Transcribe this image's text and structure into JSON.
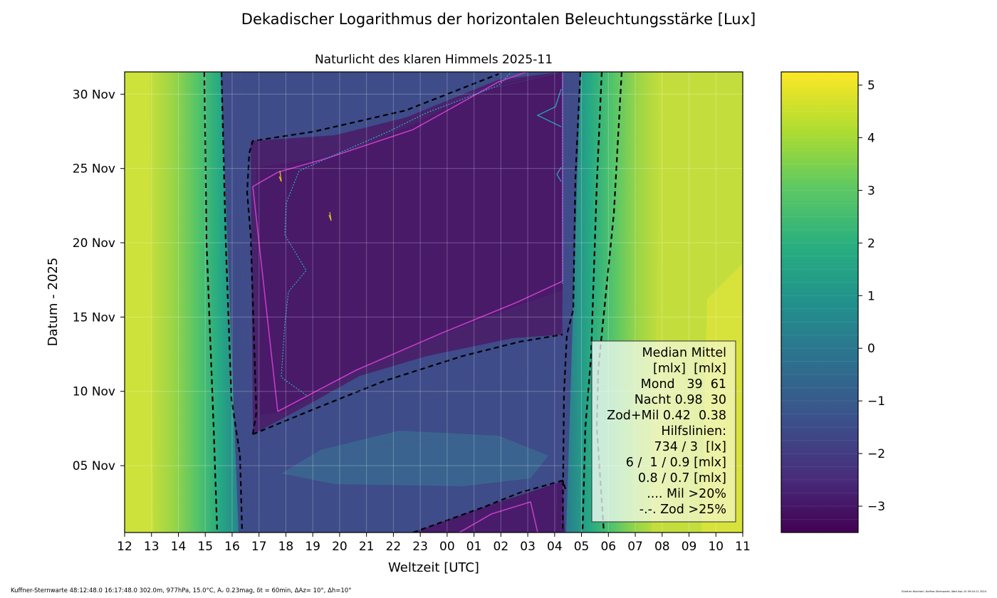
{
  "figure": {
    "suptitle": "Dekadischer Logarithmus der horizontalen Beleuchtungsstärke [Lux]",
    "title": "Naturlicht des klaren Himmels 2025-11",
    "footer_left": "Kuffner-Sternwarte 48:12:48.0 16:17:48.0 302.0m,  977hPa, 15.0°C, Aᵥ 0.23mag, δt = 60min, ΔAz= 10°, Δh=10°",
    "footer_right": "Günther Wuchterl, Kuffner-Sternwarte, Wed Sep 10 09:54:11 2024"
  },
  "chart_data": {
    "type": "heatmap",
    "title": "Naturlicht des klaren Himmels 2025-11",
    "xlabel": "Weltzeit [UTC]",
    "ylabel": "Datum - 2025",
    "x_ticks": [
      "12",
      "13",
      "14",
      "15",
      "16",
      "17",
      "18",
      "19",
      "20",
      "21",
      "22",
      "23",
      "00",
      "01",
      "02",
      "03",
      "04",
      "05",
      "06",
      "07",
      "08",
      "09",
      "10",
      "11"
    ],
    "y_ticks": [
      "05 Nov",
      "10 Nov",
      "15 Nov",
      "20 Nov",
      "25 Nov",
      "30 Nov"
    ],
    "y_tick_days": [
      5,
      10,
      15,
      20,
      25,
      30
    ],
    "xlim_hours_since_12utc": [
      0,
      23
    ],
    "ylim_day": [
      0.5,
      31.5
    ],
    "grid": true,
    "colorbar": {
      "ticks": [
        "5",
        "4",
        "3",
        "2",
        "1",
        "0",
        "−1",
        "−2",
        "−3"
      ],
      "tick_values": [
        5,
        4,
        3,
        2,
        1,
        0,
        -1,
        -2,
        -3
      ],
      "range": [
        -3.5,
        5.25
      ],
      "colormap": "viridis"
    },
    "sunset_utc_approx": {
      "day_1": "15:30",
      "day_30": "14:45"
    },
    "sunrise_utc_approx": {
      "day_1": "06:10",
      "day_30": "06:45"
    },
    "legend": {
      "placement": "lower-right",
      "lines": [
        "Median Mittel",
        "[mlx]  [mlx]",
        "Mond   39  61",
        "Nacht 0.98  30",
        "Zod+Mil 0.42  0.38",
        "Hilfslinien:",
        "734 / 3  [lx]",
        "6 /  1 / 0.9 [mlx]",
        "0.8 / 0.7 [mlx]",
        ".... Mil >20%",
        "-.-. Zod >25%"
      ]
    }
  }
}
